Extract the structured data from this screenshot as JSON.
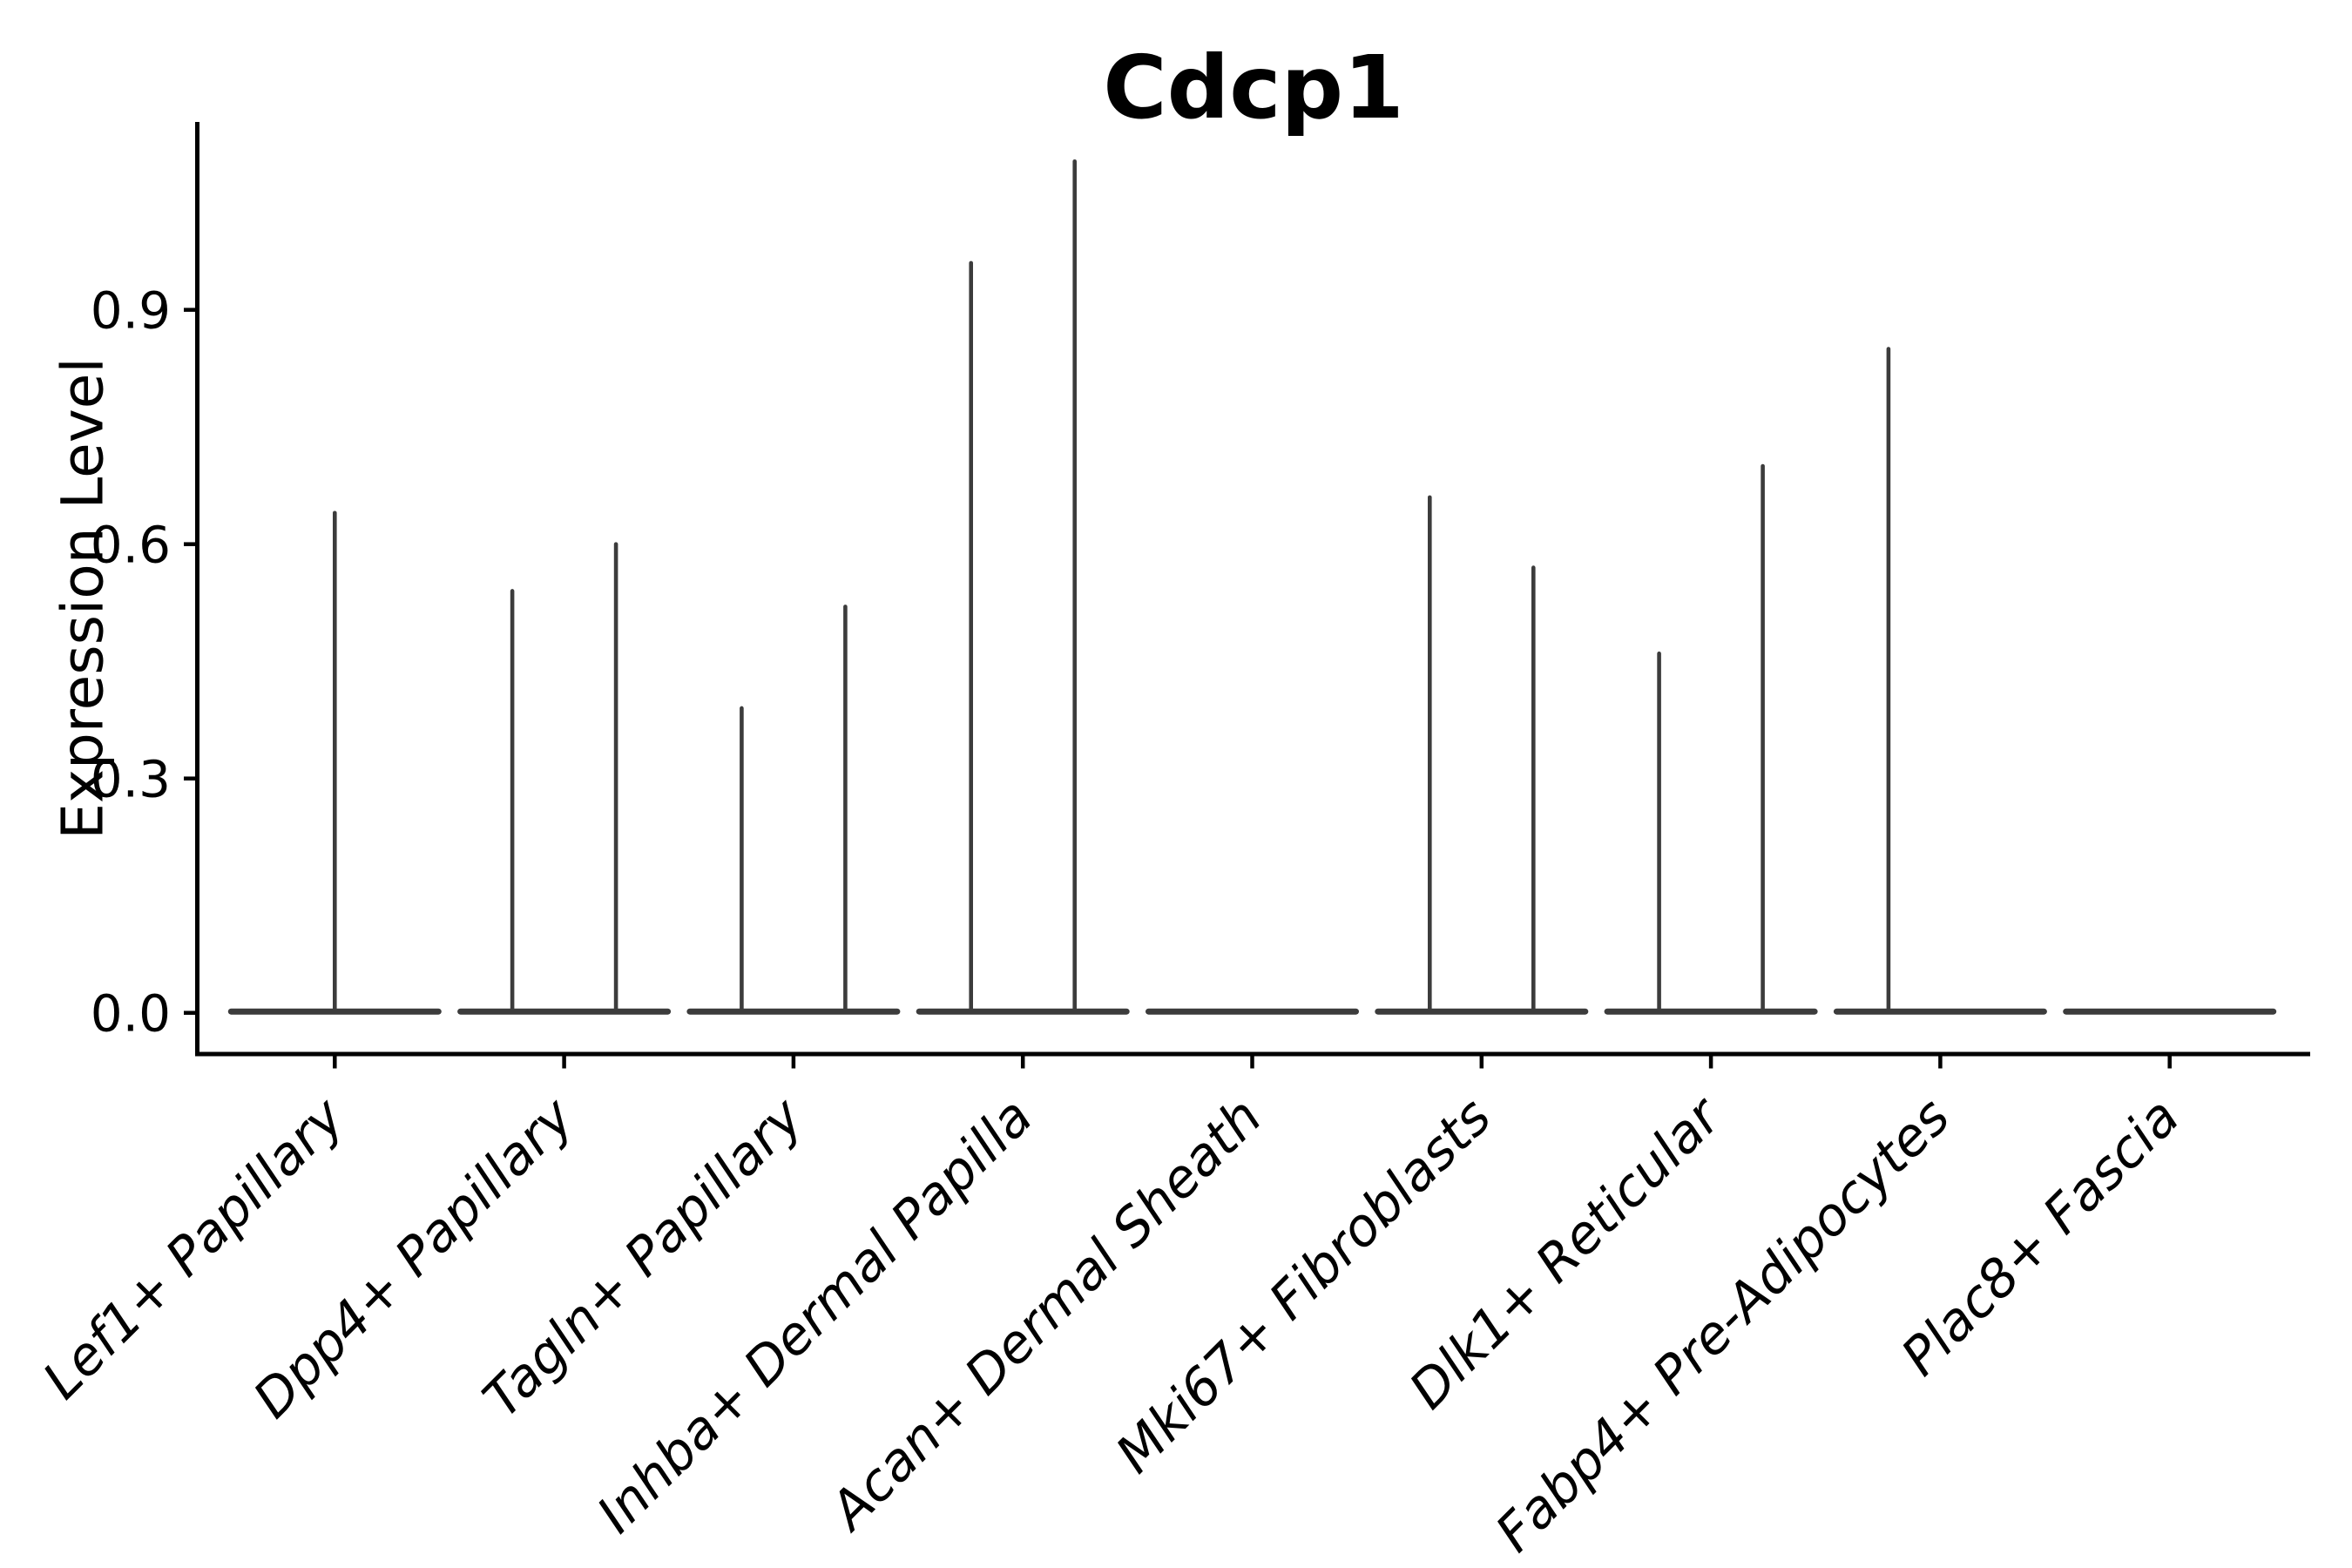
{
  "figure": {
    "background": "#ffffff"
  },
  "chart_data": {
    "type": "violin",
    "title": "Cdcp1",
    "ylabel": "Expression Level",
    "xlabel": "",
    "grid": false,
    "legend": null,
    "ylim": [
      -0.05,
      1.14
    ],
    "yticks": [
      {
        "value": 0.0,
        "label": "0.0"
      },
      {
        "value": 0.3,
        "label": "0.3"
      },
      {
        "value": 0.6,
        "label": "0.6"
      },
      {
        "value": 0.9,
        "label": "0.9"
      }
    ],
    "categories": [
      "Lef1+ Papillary",
      "Dpp4+ Papillary",
      "Tagln+ Papillary",
      "Inhba+ Dermal Papilla",
      "Acan+ Dermal Sheath",
      "Mki67+ Fibroblasts",
      "Dlk1+ Reticular",
      "Fabp4+ Pre-Adipocytes",
      "Plac8+ Fascia"
    ],
    "violins": [
      {
        "category": "Lef1+ Papillary",
        "spikes": [
          {
            "pos": "center",
            "max": 0.64
          }
        ]
      },
      {
        "category": "Dpp4+ Papillary",
        "spikes": [
          {
            "pos": "left",
            "max": 0.54
          },
          {
            "pos": "right",
            "max": 0.6
          }
        ]
      },
      {
        "category": "Tagln+ Papillary",
        "spikes": [
          {
            "pos": "left",
            "max": 0.39
          },
          {
            "pos": "right",
            "max": 0.52
          }
        ]
      },
      {
        "category": "Inhba+ Dermal Papilla",
        "spikes": [
          {
            "pos": "left",
            "max": 0.96
          },
          {
            "pos": "right",
            "max": 1.09
          }
        ]
      },
      {
        "category": "Acan+ Dermal Sheath",
        "spikes": []
      },
      {
        "category": "Mki67+ Fibroblasts",
        "spikes": [
          {
            "pos": "left",
            "max": 0.66
          },
          {
            "pos": "right",
            "max": 0.57
          }
        ]
      },
      {
        "category": "Dlk1+ Reticular",
        "spikes": [
          {
            "pos": "left",
            "max": 0.46
          },
          {
            "pos": "right",
            "max": 0.7
          }
        ]
      },
      {
        "category": "Fabp4+ Pre-Adipocytes",
        "spikes": [
          {
            "pos": "left",
            "max": 0.85
          }
        ]
      },
      {
        "category": "Plac8+ Fascia",
        "spikes": []
      }
    ],
    "colors": {
      "violin_line": "#3c3c3c",
      "axis": "#000000",
      "text": "#000000",
      "background": "#ffffff"
    }
  }
}
